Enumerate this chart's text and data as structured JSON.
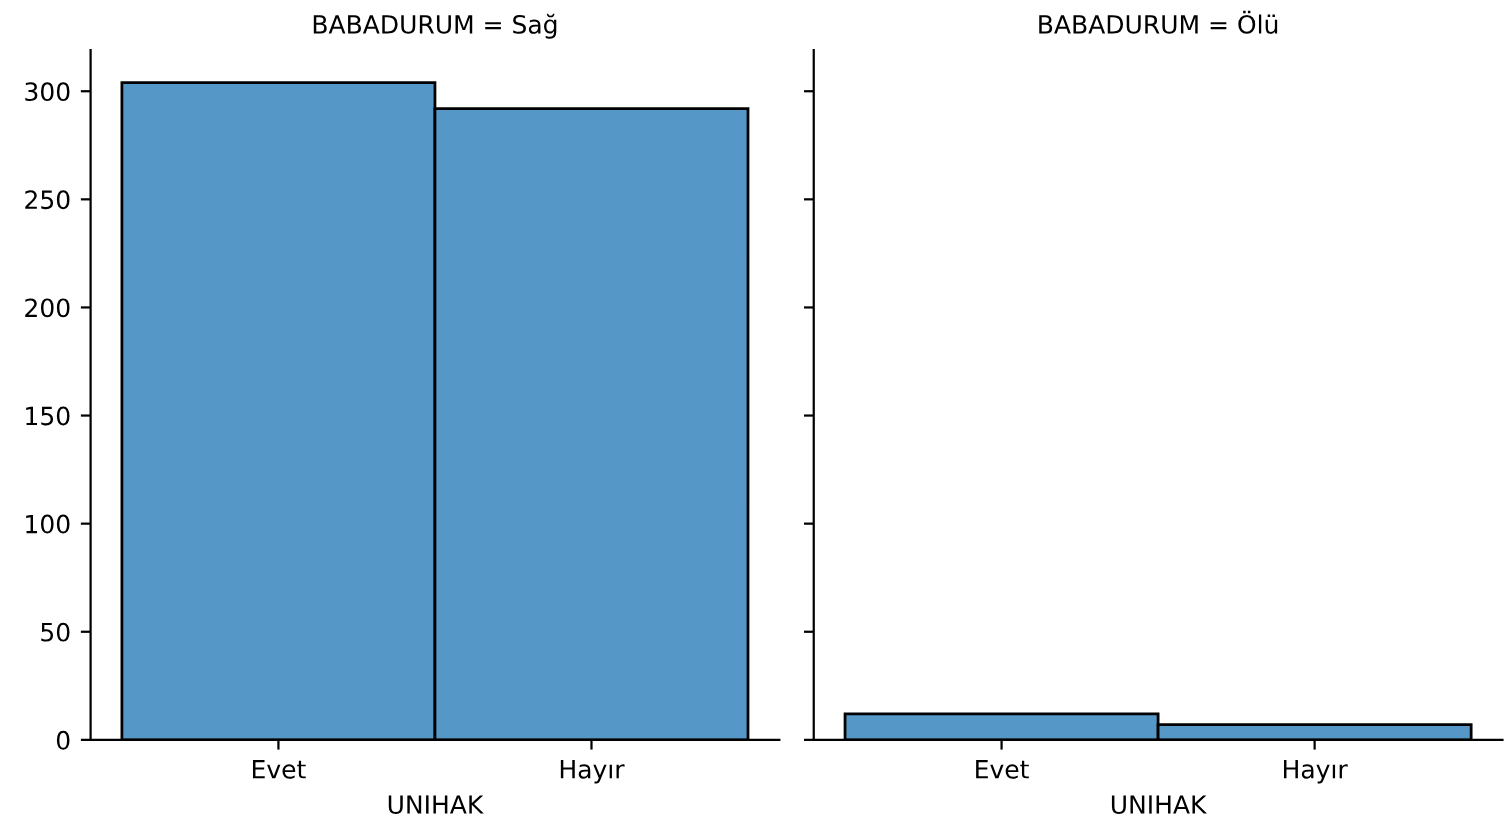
{
  "chart_data": [
    {
      "type": "bar",
      "title": "BABADURUM = Sağ",
      "xlabel": "UNIHAK",
      "categories": [
        "Evet",
        "Hayır"
      ],
      "values": [
        304,
        292
      ],
      "color": "#5597c6",
      "ylim": [
        0,
        319
      ],
      "yticks": [
        0,
        50,
        100,
        150,
        200,
        250,
        300
      ],
      "grid": false
    },
    {
      "type": "bar",
      "title": "BABADURUM = Ölü",
      "xlabel": "UNIHAK",
      "categories": [
        "Evet",
        "Hayır"
      ],
      "values": [
        12,
        7
      ],
      "color": "#5597c6",
      "ylim": [
        0,
        319
      ],
      "yticks": [
        0,
        50,
        100,
        150,
        200,
        250,
        300
      ],
      "grid": false,
      "tick_labels": "x"
    }
  ]
}
